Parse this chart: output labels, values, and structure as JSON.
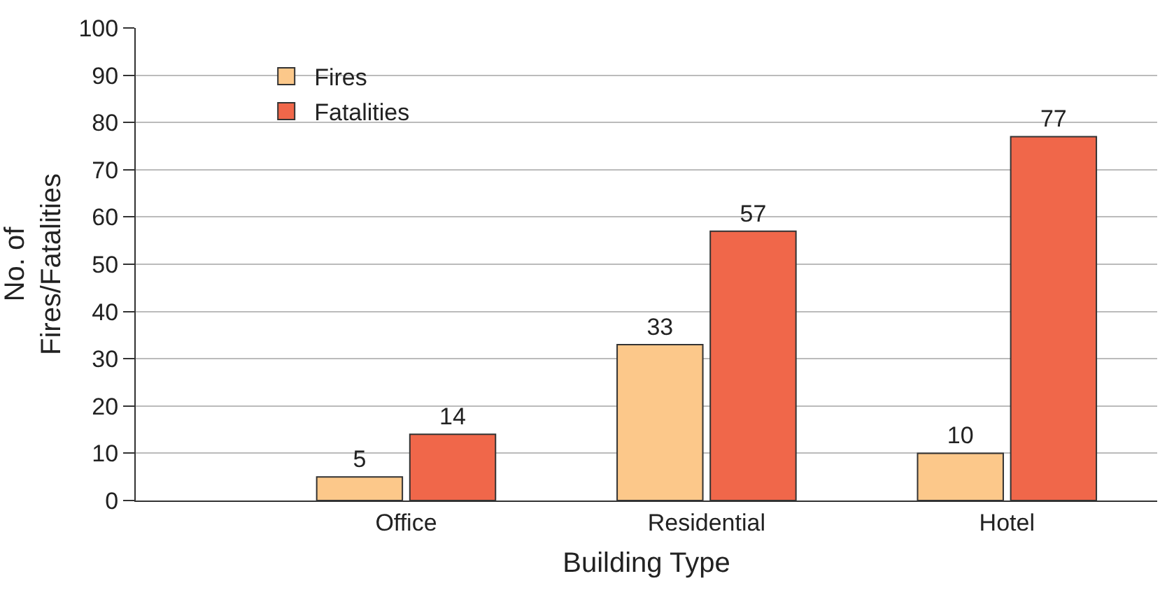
{
  "chart_data": {
    "type": "bar",
    "xlabel": "Building Type",
    "ylabel": "No. of\nFires/Fatalities",
    "categories": [
      "Office",
      "Residential",
      "Hotel"
    ],
    "series": [
      {
        "name": "Fires",
        "color": "#fcc88a",
        "values": [
          5,
          33,
          10
        ]
      },
      {
        "name": "Fatalities",
        "color": "#f0674a",
        "values": [
          14,
          57,
          77
        ]
      }
    ],
    "ylim": [
      0,
      100
    ],
    "yticks": [
      0,
      10,
      20,
      30,
      40,
      50,
      60,
      70,
      80,
      90,
      100
    ],
    "grid": "y",
    "legend": "top left",
    "data_labels": true
  }
}
